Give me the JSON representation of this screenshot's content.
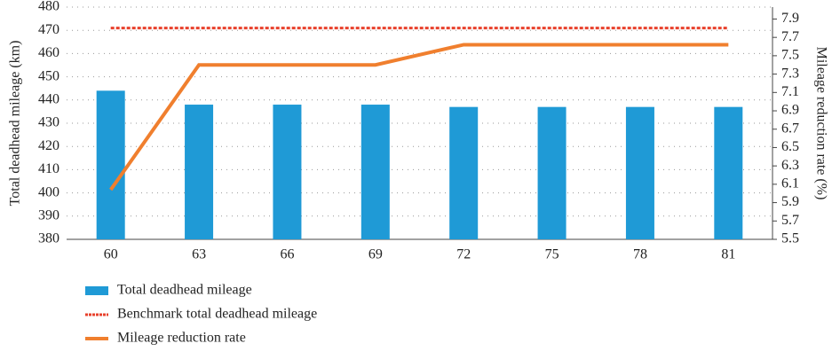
{
  "chart_data": {
    "type": "bar",
    "ylabel": "Total deadhead mileage (km)",
    "y2label": "Mileage reduction rate (%)",
    "categories": [
      "60",
      "63",
      "66",
      "69",
      "72",
      "75",
      "78",
      "81"
    ],
    "series": [
      {
        "name": "Total deadhead mileage",
        "type": "bar",
        "color": "#1f9ad6",
        "values": [
          444,
          438,
          438,
          438,
          437,
          437,
          437,
          437
        ]
      },
      {
        "name": "Benchmark total deadhead mileage",
        "type": "line",
        "dashed": true,
        "color": "#e8412c",
        "values": [
          471,
          471,
          471,
          471,
          471,
          471,
          471,
          471
        ]
      },
      {
        "name": "Mileage reduction rate",
        "type": "line",
        "axis": "y2",
        "color": "#f07f2e",
        "values": [
          6.04,
          7.4,
          7.4,
          7.4,
          7.62,
          7.62,
          7.62,
          7.62
        ]
      }
    ],
    "ylim": [
      380,
      480
    ],
    "yticks": [
      380,
      390,
      400,
      410,
      420,
      430,
      440,
      450,
      460,
      470,
      480
    ],
    "y2lim": [
      5.5,
      8.03
    ],
    "y2ticks": [
      5.5,
      5.7,
      5.9,
      6.1,
      6.3,
      6.5,
      6.7,
      6.9,
      7.1,
      7.3,
      7.5,
      7.7,
      7.9
    ],
    "grid": true
  }
}
